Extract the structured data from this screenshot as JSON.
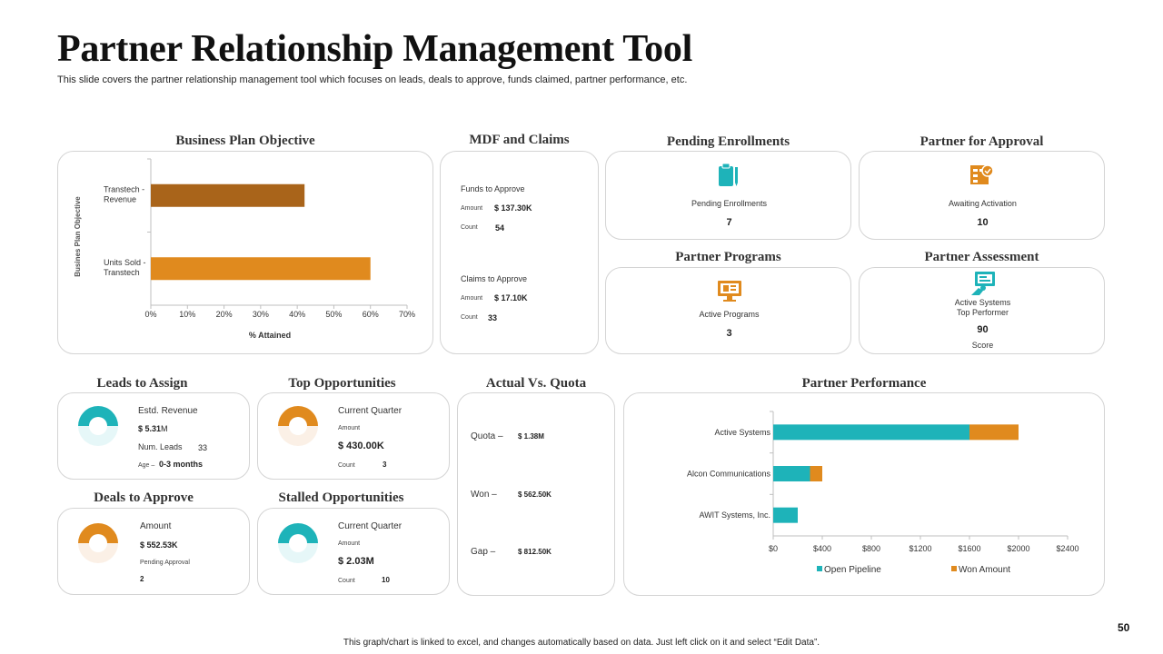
{
  "header": {
    "title": "Partner Relationship Management Tool",
    "subtitle": "This slide covers the partner relationship management tool which focuses on leads, deals to approve, funds claimed, partner performance, etc."
  },
  "colors": {
    "teal": "#1eb3b9",
    "orange": "#e08a1e",
    "brown": "#a9641a"
  },
  "business_plan": {
    "title": "Business Plan Objective"
  },
  "mdf": {
    "title": "MDF and Claims",
    "funds_label": "Funds to Approve",
    "funds_amount_label": "Amount",
    "funds_amount": "$ 137.30K",
    "funds_count_label": "Count",
    "funds_count": "54",
    "claims_label": "Claims to Approve",
    "claims_amount_label": "Amount",
    "claims_amount": "$ 17.10K",
    "claims_count_label": "Count",
    "claims_count": "33"
  },
  "pending_enrollments": {
    "title": "Pending Enrollments",
    "label": "Pending Enrollments",
    "value": "7"
  },
  "partner_approval": {
    "title": "Partner for Approval",
    "label": "Awaiting Activation",
    "value": "10"
  },
  "partner_programs": {
    "title": "Partner Programs",
    "label": "Active Programs",
    "value": "3"
  },
  "partner_assessment": {
    "title": "Partner Assessment",
    "label1": "Active Systems",
    "label2": "Top Performer",
    "value": "90",
    "value_label": "Score"
  },
  "leads": {
    "title": "Leads to Assign",
    "revenue_label": "Estd. Revenue",
    "revenue": "$ 5.31",
    "revenue_unit": "M",
    "leads_label": "Num. Leads",
    "leads": "33",
    "age_label": "Age –",
    "age": "0-3 months"
  },
  "top_opps": {
    "title": "Top Opportunities",
    "quarter_label": "Current Quarter",
    "amount_label": "Amount",
    "amount": "$ 430.00K",
    "count_label": "Count",
    "count": "3"
  },
  "deals": {
    "title": "Deals to Approve",
    "amount_label": "Amount",
    "amount": "$ 552.53K",
    "pending_label": "Pending Approval",
    "pending": "2"
  },
  "stalled": {
    "title": "Stalled Opportunities",
    "quarter_label": "Current Quarter",
    "amount_label": "Amount",
    "amount": "$ 2.03M",
    "count_label": "Count",
    "count": "10"
  },
  "quota": {
    "title": "Actual Vs. Quota",
    "quota_label": "Quota –",
    "quota": "$ 1.38M",
    "won_label": "Won –",
    "won": "$ 562.50K",
    "gap_label": "Gap –",
    "gap": "$ 812.50K"
  },
  "performance": {
    "title": "Partner Performance"
  },
  "footer": {
    "note": "This graph/chart is linked to excel, and changes automatically based on data. Just left click on it and select “Edit Data”.",
    "page": "50"
  },
  "chart_data": [
    {
      "type": "bar",
      "orientation": "horizontal",
      "title": "Business Plan Objective",
      "categories": [
        "Transtech - Revenue",
        "Units Sold - Transtech"
      ],
      "category_lines": [
        [
          "Transtech -",
          "Revenue"
        ],
        [
          "Units Sold -",
          "Transtech"
        ]
      ],
      "values": [
        0.42,
        0.6
      ],
      "bar_colors": [
        "#a9641a",
        "#e08a1e"
      ],
      "xlabel": "% Attained",
      "ylabel": "Busines Plan Objective",
      "xlim": [
        0,
        0.7
      ],
      "xticks": [
        "0%",
        "10%",
        "20%",
        "30%",
        "40%",
        "50%",
        "60%",
        "70%"
      ]
    },
    {
      "type": "bar",
      "orientation": "horizontal",
      "stacked": true,
      "title": "Partner Performance",
      "categories": [
        "Active Systems",
        "Alcon Communications",
        "AWIT Systems, Inc."
      ],
      "series": [
        {
          "name": "Open Pipeline",
          "color": "#1eb3b9",
          "values": [
            1600,
            300,
            200
          ]
        },
        {
          "name": "Won Amount",
          "color": "#e08a1e",
          "values": [
            400,
            100,
            0
          ]
        }
      ],
      "xlim": [
        0,
        2400
      ],
      "xticks": [
        "$0",
        "$400",
        "$800",
        "$1200",
        "$1600",
        "$2000",
        "$2400"
      ],
      "legend": "bottom"
    }
  ]
}
